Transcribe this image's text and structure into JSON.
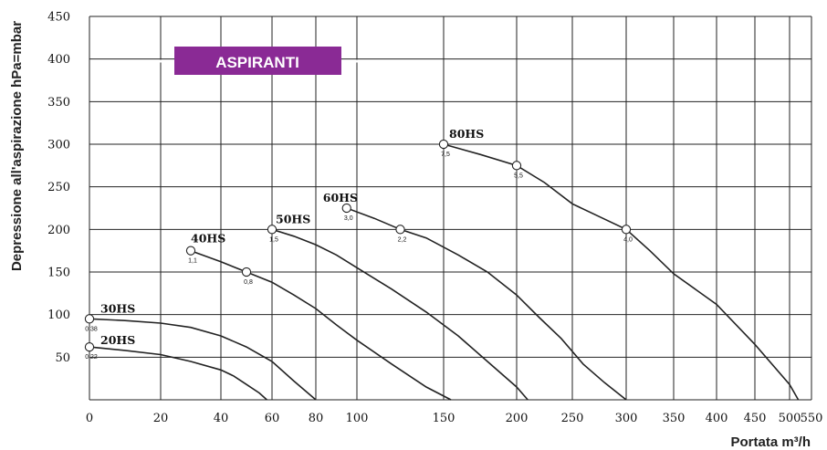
{
  "chart_data": {
    "type": "line",
    "title": "ASPIRANTI",
    "xlabel": "Portata m³/h",
    "ylabel": "Depressione all'aspirazione hPa=mbar",
    "x_tick_labels": [
      "0",
      "20",
      "40",
      "60",
      "80",
      "100",
      "150",
      "200",
      "250",
      "300",
      "350",
      "400",
      "450",
      "500",
      "550"
    ],
    "y_ticks": [
      0,
      50,
      100,
      150,
      200,
      250,
      300,
      350,
      400,
      450
    ],
    "y_tick_labels": [
      "50",
      "100",
      "150",
      "200",
      "250",
      "300",
      "350",
      "400",
      "450"
    ],
    "ylim": [
      0,
      450
    ],
    "grid": true,
    "colors": {
      "badge": "#8a2a95",
      "line": "#222222"
    },
    "series": [
      {
        "name": "20HS",
        "x": [
          0,
          10,
          20,
          30,
          40,
          45,
          50,
          55,
          58
        ],
        "y": [
          62,
          58,
          53,
          45,
          35,
          28,
          18,
          8,
          0
        ],
        "points": [
          {
            "x": 0,
            "y": 62,
            "label": "0,22"
          }
        ]
      },
      {
        "name": "30HS",
        "x": [
          0,
          10,
          20,
          30,
          40,
          50,
          60,
          70,
          80
        ],
        "y": [
          95,
          93,
          90,
          85,
          75,
          62,
          45,
          22,
          0
        ],
        "points": [
          {
            "x": 0,
            "y": 95,
            "label": "0,38"
          }
        ]
      },
      {
        "name": "40HS",
        "x": [
          30,
          40,
          50,
          60,
          70,
          80,
          90,
          100,
          120,
          140,
          155
        ],
        "y": [
          175,
          162,
          150,
          138,
          123,
          107,
          88,
          70,
          42,
          15,
          0
        ],
        "points": [
          {
            "x": 30,
            "y": 175,
            "label": "1,1"
          },
          {
            "x": 50,
            "y": 150,
            "label": "0,8"
          }
        ]
      },
      {
        "name": "50HS",
        "x": [
          60,
          70,
          80,
          90,
          100,
          120,
          140,
          160,
          180,
          200,
          210
        ],
        "y": [
          200,
          192,
          182,
          170,
          155,
          130,
          103,
          75,
          45,
          15,
          0
        ],
        "points": [
          {
            "x": 60,
            "y": 200,
            "label": "1,5"
          }
        ]
      },
      {
        "name": "60HS",
        "x": [
          95,
          110,
          125,
          140,
          160,
          180,
          200,
          220,
          240,
          260,
          280,
          300
        ],
        "y": [
          225,
          213,
          200,
          190,
          170,
          150,
          123,
          97,
          72,
          42,
          20,
          0
        ],
        "points": [
          {
            "x": 95,
            "y": 225,
            "label": "3,0"
          },
          {
            "x": 125,
            "y": 200,
            "label": "2,2"
          }
        ]
      },
      {
        "name": "80HS",
        "x": [
          150,
          175,
          200,
          225,
          250,
          275,
          300,
          325,
          350,
          400,
          450,
          500,
          520
        ],
        "y": [
          300,
          288,
          275,
          255,
          230,
          215,
          200,
          175,
          148,
          112,
          65,
          18,
          0
        ],
        "points": [
          {
            "x": 150,
            "y": 300,
            "label": "7,5"
          },
          {
            "x": 200,
            "y": 275,
            "label": "5,5"
          },
          {
            "x": 300,
            "y": 200,
            "label": "4,0"
          }
        ]
      }
    ]
  }
}
